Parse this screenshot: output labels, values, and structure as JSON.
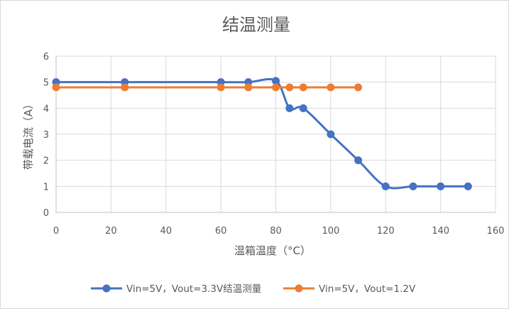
{
  "chart_data": {
    "type": "line",
    "title": "结温测量",
    "xlabel": "温箱温度（°C）",
    "ylabel": "带载电流（A）",
    "xlim": [
      0,
      160
    ],
    "ylim": [
      0,
      6
    ],
    "x_ticks": [
      "0",
      "20",
      "40",
      "60",
      "80",
      "100",
      "120",
      "140",
      "160"
    ],
    "y_ticks": [
      "0",
      "1",
      "2",
      "3",
      "4",
      "5",
      "6"
    ],
    "grid": "vertical and horizontal",
    "legend_position": "bottom",
    "smooth": true,
    "series": [
      {
        "name": "Vin=5V，Vout=3.3V结温测量",
        "color": "#4472C4",
        "x": [
          0,
          25,
          60,
          70,
          80,
          85,
          90,
          100,
          110,
          120,
          130,
          140,
          150
        ],
        "y": [
          5,
          5,
          5,
          5,
          5.05,
          4,
          4,
          3,
          2,
          1,
          1,
          1,
          1
        ]
      },
      {
        "name": "Vin=5V，Vout=1.2V",
        "color": "#ED7D31",
        "x": [
          0,
          25,
          60,
          70,
          80,
          85,
          90,
          100,
          110
        ],
        "y": [
          4.8,
          4.8,
          4.8,
          4.8,
          4.8,
          4.8,
          4.8,
          4.8,
          4.8
        ]
      }
    ]
  }
}
